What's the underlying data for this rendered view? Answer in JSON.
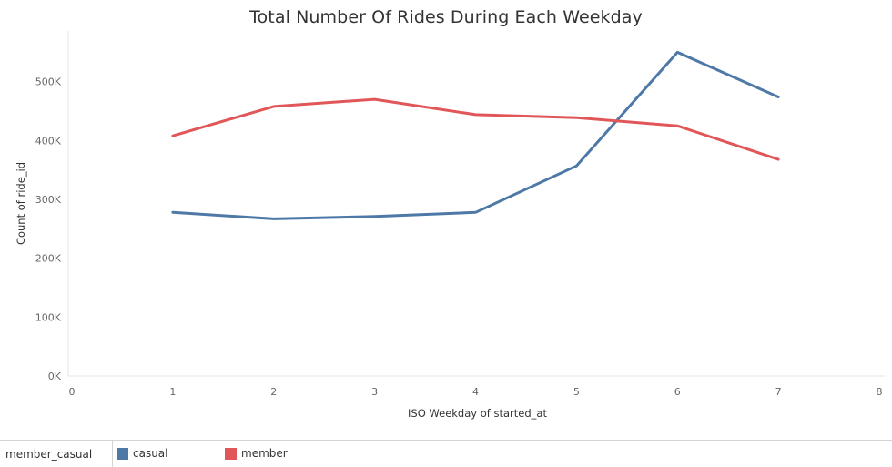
{
  "chart_data": {
    "type": "line",
    "title": "Total Number Of Rides During Each Weekday",
    "xlabel": "ISO Weekday of started_at",
    "ylabel": "Count of ride_id",
    "x": [
      1,
      2,
      3,
      4,
      5,
      6,
      7
    ],
    "xlim": [
      0,
      8
    ],
    "x_ticks": [
      "0",
      "1",
      "2",
      "3",
      "4",
      "5",
      "6",
      "7",
      "8"
    ],
    "ylim": [
      0,
      580000
    ],
    "y_ticks": [
      {
        "value": 0,
        "label": "0K"
      },
      {
        "value": 100000,
        "label": "100K"
      },
      {
        "value": 200000,
        "label": "200K"
      },
      {
        "value": 300000,
        "label": "300K"
      },
      {
        "value": 400000,
        "label": "400K"
      },
      {
        "value": 500000,
        "label": "500K"
      }
    ],
    "series": [
      {
        "name": "casual",
        "color": "#4e79a7",
        "values": [
          278000,
          267000,
          271000,
          278000,
          357000,
          550000,
          474000
        ]
      },
      {
        "name": "member",
        "color": "#e15759",
        "values": [
          408000,
          458000,
          470000,
          444000,
          439000,
          425000,
          368000
        ]
      }
    ],
    "grid": false,
    "legend": {
      "field": "member_casual",
      "position": "bottom"
    }
  }
}
